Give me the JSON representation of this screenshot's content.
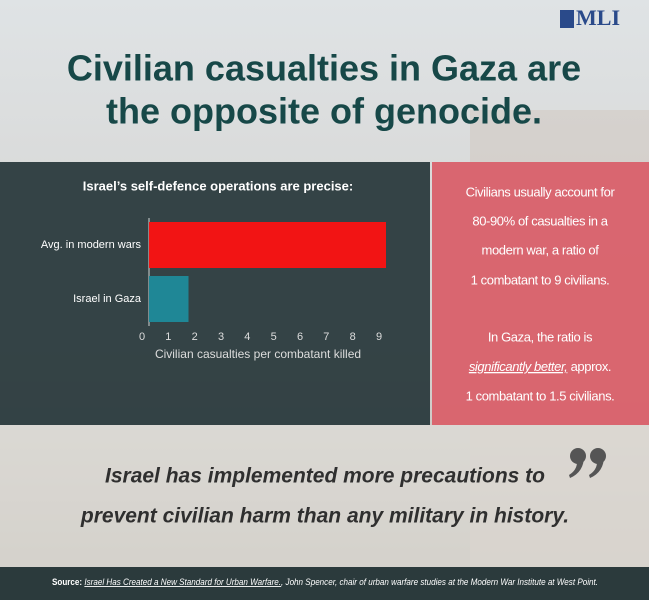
{
  "logo": "MLI",
  "title_lines": [
    "Civilian casualties in Gaza are",
    "the opposite of genocide."
  ],
  "chart_data": {
    "type": "bar",
    "orientation": "horizontal",
    "title": "Israel’s self-defence operations are precise:",
    "categories": [
      "Avg. in modern wars",
      "Israel in Gaza"
    ],
    "values": [
      9,
      1.5
    ],
    "colors": [
      "#f21414",
      "#1f8796"
    ],
    "xlim": [
      0,
      9
    ],
    "xticks": [
      0,
      1,
      2,
      3,
      4,
      5,
      6,
      7,
      8,
      9
    ],
    "xlabel": "Civilian casualties per combatant killed"
  },
  "panel": {
    "paragraph1": [
      "Civilians usually account for",
      "80-90% of casualties in a",
      "modern war, a ratio of",
      "1 combatant to 9 civilians."
    ],
    "paragraph2": {
      "line1": "In Gaza, the ratio is",
      "emphasis": "significantly better,",
      "line2_rest": " approx.",
      "line3": "1 combatant to 1.5 civilians."
    }
  },
  "quote": [
    "Israel has implemented more precautions to",
    "prevent civilian harm than any military in history."
  ],
  "source": {
    "label": "Source:",
    "link": "Israel Has Created a New Standard for Urban Warfare.",
    "rest": ", John Spencer, chair of urban warfare studies at the Modern War Institute at West Point."
  }
}
